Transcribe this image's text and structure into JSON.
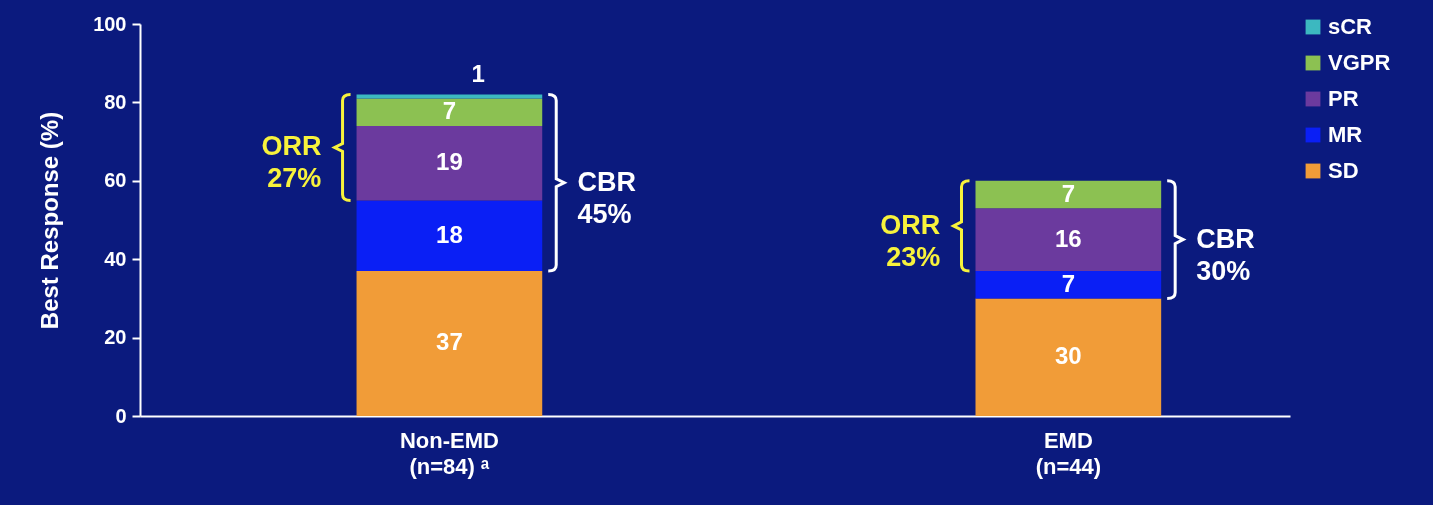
{
  "chart_data": {
    "type": "bar",
    "stacked": true,
    "ylabel": "Best Response (%)",
    "categories": [
      "Non-EMD\n(n=84) ᵃ",
      "EMD\n(n=44)"
    ],
    "series": [
      {
        "name": "SD",
        "color": "#f19c38",
        "values": [
          37,
          30
        ]
      },
      {
        "name": "MR",
        "color": "#0a1ff5",
        "values": [
          18,
          7
        ]
      },
      {
        "name": "PR",
        "color": "#6b3a9e",
        "values": [
          19,
          16
        ]
      },
      {
        "name": "VGPR",
        "color": "#8cc152",
        "values": [
          7,
          7
        ]
      },
      {
        "name": "sCR",
        "color": "#3cb8c0",
        "values": [
          1,
          null
        ]
      }
    ],
    "ylim": [
      0,
      100
    ],
    "yticks": [
      0,
      20,
      40,
      60,
      80,
      100
    ],
    "grid": false,
    "legend": "top right",
    "data_labels": true,
    "annotations": [
      "ORR\n27%",
      "CBR\n45%",
      "ORR\n23%",
      "CBR\n30%"
    ]
  }
}
